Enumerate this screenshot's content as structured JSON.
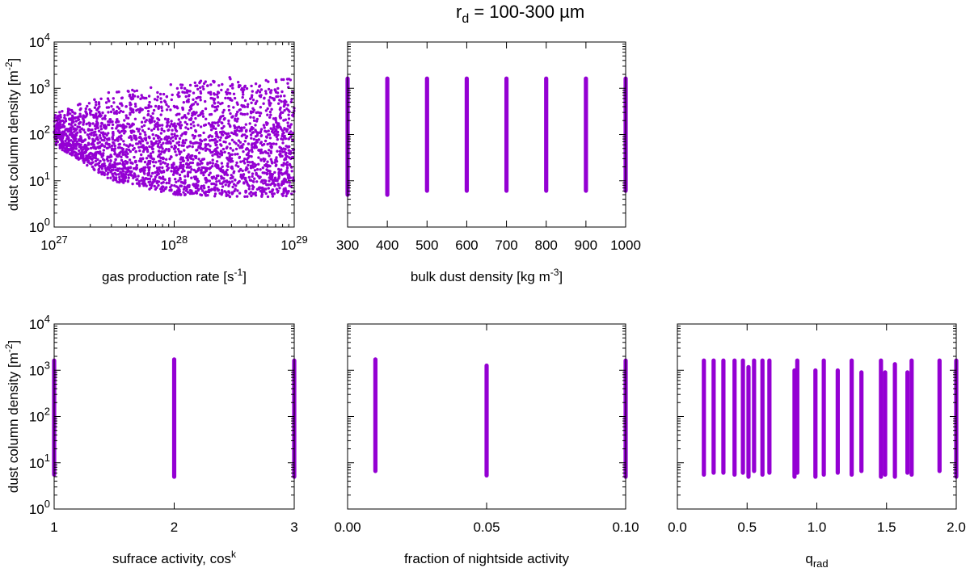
{
  "figure": {
    "title_main": "r",
    "title_sub": "d",
    "title_rest": " = 100-300 µm",
    "marker_color": "#9400d3"
  },
  "chart_data": [
    {
      "type": "scatter",
      "id": "gas",
      "xscale": "log",
      "yscale": "log",
      "xlim": [
        1e+27,
        1e+29
      ],
      "ylim": [
        1,
        10000
      ],
      "xticks": [
        {
          "v": 1e+27,
          "b": "10",
          "e": "27"
        },
        {
          "v": 1e+28,
          "b": "10",
          "e": "28"
        },
        {
          "v": 1e+29,
          "b": "10",
          "e": "29"
        }
      ],
      "yticks": [
        {
          "v": 1,
          "b": "10",
          "e": "0"
        },
        {
          "v": 10,
          "b": "10",
          "e": "1"
        },
        {
          "v": 100,
          "b": "10",
          "e": "2"
        },
        {
          "v": 1000,
          "b": "10",
          "e": "3"
        },
        {
          "v": 10000,
          "b": "10",
          "e": "4"
        }
      ],
      "show_yticklabels": true,
      "xlabel": {
        "main": "gas production rate [s",
        "sup": "-1",
        "rest": "]"
      },
      "ylabel": {
        "main": "dust column density [m",
        "sup": "-2",
        "rest": "]"
      },
      "scatter_model": "dense cloud of points across Q; upper envelope rising from ~280 at 1e27 to ~1800 at 1e29, lower envelope ~5 to ~60",
      "envelope": {
        "q": [
          1e+27,
          3e+27,
          1e+28,
          3e+28,
          1e+29
        ],
        "ymax": [
          280,
          900,
          1300,
          1800,
          1800
        ],
        "ymin": [
          60,
          10,
          5,
          4.5,
          4.5
        ]
      }
    },
    {
      "type": "scatter",
      "id": "bulk",
      "xscale": "linear",
      "yscale": "log",
      "xlim": [
        300,
        1000
      ],
      "ylim": [
        1,
        10000
      ],
      "xticks": [
        {
          "v": 300,
          "t": "300"
        },
        {
          "v": 400,
          "t": "400"
        },
        {
          "v": 500,
          "t": "500"
        },
        {
          "v": 600,
          "t": "600"
        },
        {
          "v": 700,
          "t": "700"
        },
        {
          "v": 800,
          "t": "800"
        },
        {
          "v": 900,
          "t": "900"
        },
        {
          "v": 1000,
          "t": "1000"
        }
      ],
      "yticks": [
        {
          "v": 1
        },
        {
          "v": 10
        },
        {
          "v": 100
        },
        {
          "v": 1000
        },
        {
          "v": 10000
        }
      ],
      "show_yticklabels": false,
      "xlabel": {
        "main": "bulk dust density [kg m",
        "sup": "-3",
        "rest": "]"
      },
      "columns": [
        {
          "x": 300,
          "ymin": 4.5,
          "ymax": 1800
        },
        {
          "x": 400,
          "ymin": 4.5,
          "ymax": 1800
        },
        {
          "x": 500,
          "ymin": 5.5,
          "ymax": 1800
        },
        {
          "x": 600,
          "ymin": 5.5,
          "ymax": 1800
        },
        {
          "x": 700,
          "ymin": 5.5,
          "ymax": 1800
        },
        {
          "x": 800,
          "ymin": 5.5,
          "ymax": 1800
        },
        {
          "x": 900,
          "ymin": 5.5,
          "ymax": 1800
        },
        {
          "x": 1000,
          "ymin": 5.5,
          "ymax": 1800
        }
      ]
    },
    {
      "type": "scatter",
      "id": "surface",
      "xscale": "linear",
      "yscale": "log",
      "xlim": [
        1,
        3
      ],
      "ylim": [
        1,
        10000
      ],
      "xticks": [
        {
          "v": 1,
          "t": "1"
        },
        {
          "v": 2,
          "t": "2"
        },
        {
          "v": 3,
          "t": "3"
        }
      ],
      "yticks": [
        {
          "v": 1,
          "b": "10",
          "e": "0"
        },
        {
          "v": 10,
          "b": "10",
          "e": "1"
        },
        {
          "v": 100,
          "b": "10",
          "e": "2"
        },
        {
          "v": 1000,
          "b": "10",
          "e": "3"
        },
        {
          "v": 10000,
          "b": "10",
          "e": "4"
        }
      ],
      "show_yticklabels": true,
      "xlabel": {
        "main": "sufrace activity, cos",
        "sup": "k",
        "rest": ""
      },
      "ylabel": {
        "main": "dust column density [m",
        "sup": "-2",
        "rest": "]"
      },
      "columns": [
        {
          "x": 1,
          "ymin": 5,
          "ymax": 1800
        },
        {
          "x": 2,
          "ymin": 4.5,
          "ymax": 1900
        },
        {
          "x": 3,
          "ymin": 4.5,
          "ymax": 1800
        }
      ]
    },
    {
      "type": "scatter",
      "id": "night",
      "xscale": "linear",
      "yscale": "log",
      "xlim": [
        0,
        0.1
      ],
      "ylim": [
        1,
        10000
      ],
      "xticks": [
        {
          "v": 0,
          "t": "0.00"
        },
        {
          "v": 0.05,
          "t": "0.05"
        },
        {
          "v": 0.1,
          "t": "0.10"
        }
      ],
      "yticks": [
        {
          "v": 1
        },
        {
          "v": 10
        },
        {
          "v": 100
        },
        {
          "v": 1000
        },
        {
          "v": 10000
        }
      ],
      "show_yticklabels": false,
      "xlabel": {
        "main": "fraction of nightside activity",
        "sup": "",
        "rest": ""
      },
      "columns": [
        {
          "x": 0.01,
          "ymin": 6,
          "ymax": 1900
        },
        {
          "x": 0.05,
          "ymin": 4.8,
          "ymax": 1400
        },
        {
          "x": 0.1,
          "ymin": 4.5,
          "ymax": 1800
        }
      ]
    },
    {
      "type": "scatter",
      "id": "qrad",
      "xscale": "linear",
      "yscale": "log",
      "xlim": [
        0,
        2
      ],
      "ylim": [
        1,
        10000
      ],
      "xticks": [
        {
          "v": 0,
          "t": "0.0"
        },
        {
          "v": 0.5,
          "t": "0.5"
        },
        {
          "v": 1.0,
          "t": "1.0"
        },
        {
          "v": 1.5,
          "t": "1.5"
        },
        {
          "v": 2.0,
          "t": "2.0"
        }
      ],
      "yticks": [
        {
          "v": 1
        },
        {
          "v": 10
        },
        {
          "v": 100
        },
        {
          "v": 1000
        },
        {
          "v": 10000
        }
      ],
      "show_yticklabels": false,
      "xlabel": {
        "main": "q",
        "sub": "rad",
        "rest": ""
      },
      "columns": [
        {
          "x": 0.19,
          "ymin": 5,
          "ymax": 1800
        },
        {
          "x": 0.26,
          "ymin": 5.5,
          "ymax": 1800
        },
        {
          "x": 0.33,
          "ymin": 5.5,
          "ymax": 1800
        },
        {
          "x": 0.41,
          "ymin": 5,
          "ymax": 1800
        },
        {
          "x": 0.47,
          "ymin": 5.5,
          "ymax": 1800
        },
        {
          "x": 0.51,
          "ymin": 4.5,
          "ymax": 1300
        },
        {
          "x": 0.55,
          "ymin": 6,
          "ymax": 1800
        },
        {
          "x": 0.61,
          "ymin": 5,
          "ymax": 1800
        },
        {
          "x": 0.66,
          "ymin": 5.5,
          "ymax": 1800
        },
        {
          "x": 0.84,
          "ymin": 4.5,
          "ymax": 1100
        },
        {
          "x": 0.86,
          "ymin": 5.5,
          "ymax": 1800
        },
        {
          "x": 0.99,
          "ymin": 4.5,
          "ymax": 1100
        },
        {
          "x": 1.05,
          "ymin": 5,
          "ymax": 1800
        },
        {
          "x": 1.15,
          "ymin": 5.5,
          "ymax": 1100
        },
        {
          "x": 1.25,
          "ymin": 5,
          "ymax": 1800
        },
        {
          "x": 1.32,
          "ymin": 6,
          "ymax": 1000
        },
        {
          "x": 1.46,
          "ymin": 4.5,
          "ymax": 1800
        },
        {
          "x": 1.49,
          "ymin": 5,
          "ymax": 1000
        },
        {
          "x": 1.56,
          "ymin": 4.5,
          "ymax": 1500
        },
        {
          "x": 1.65,
          "ymin": 5.5,
          "ymax": 1000
        },
        {
          "x": 1.68,
          "ymin": 5,
          "ymax": 1800
        },
        {
          "x": 1.88,
          "ymin": 6,
          "ymax": 1800
        },
        {
          "x": 2.0,
          "ymin": 4.5,
          "ymax": 1800
        }
      ]
    }
  ]
}
